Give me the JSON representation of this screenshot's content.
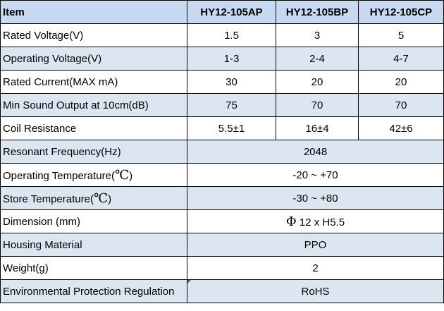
{
  "table": {
    "headers": [
      "Item",
      "HY12-105AP",
      "HY12-105BP",
      "HY12-105CP"
    ],
    "rows": [
      {
        "label": "Rated Voltage(V)",
        "values": [
          "1.5",
          "3",
          "5"
        ]
      },
      {
        "label": "Operating Voltage(V)",
        "values": [
          "1-3",
          "2-4",
          "4-7"
        ]
      },
      {
        "label": "Rated Current(MAX mA)",
        "values": [
          "30",
          "20",
          "20"
        ]
      },
      {
        "label": "Min Sound Output at 10cm(dB)",
        "values": [
          "75",
          "70",
          "70"
        ]
      },
      {
        "label": "Coil Resistance",
        "values": [
          "5.5±1",
          "16±4",
          "42±6"
        ]
      },
      {
        "label": "Resonant Frequency(Hz)",
        "value": "2048"
      },
      {
        "label": "Operating Temperature(",
        "unit": "℃",
        "label_close": ")",
        "value": "-20 ~ +70"
      },
      {
        "label": "Store Temperature(",
        "unit": "℃",
        "label_close": ")",
        "value": "-30 ~ +80"
      },
      {
        "label": "Dimension (mm)",
        "value_symbol": "Φ",
        "value": " 12 x H5.5"
      },
      {
        "label": "Housing Material",
        "value": "PPO"
      },
      {
        "label": "Weight(g)",
        "value": "2"
      },
      {
        "label": "Environmental Protection Regulation",
        "value": "RoHS"
      }
    ]
  },
  "colors": {
    "header_bg": "#c7d9f1",
    "shaded_row_bg": "#dce6f1",
    "border": "#000000"
  }
}
